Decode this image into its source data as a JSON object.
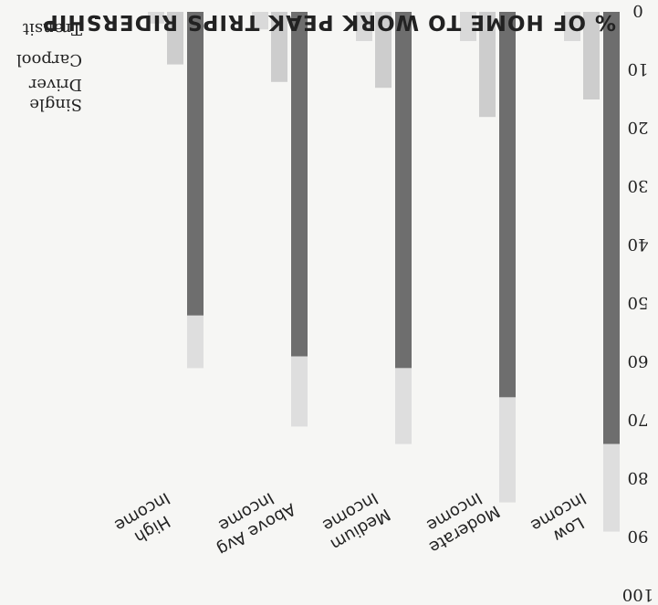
{
  "chart_data": {
    "type": "bar",
    "title": "% OF HOME TO WORK PEAK TRIPS RIDERSHIP",
    "xlabel": "",
    "ylabel": "",
    "ylim": [
      0,
      100
    ],
    "y_ticks": [
      0,
      10,
      20,
      30,
      40,
      50,
      60,
      70,
      80,
      90,
      100
    ],
    "categories": [
      "Low Income",
      "Moderate Income",
      "Medium Income",
      "Above Avg Income",
      "High Income"
    ],
    "series": [
      {
        "name": "Single Driver",
        "values": [
          74,
          66,
          61,
          59,
          52
        ]
      },
      {
        "name": "Carpool",
        "values": [
          15,
          18,
          13,
          12,
          9
        ]
      },
      {
        "name": "Transit",
        "values": [
          5,
          5,
          5,
          3,
          2
        ]
      }
    ],
    "legend_entries": [
      "Transit",
      "Carpool",
      "Single Driver"
    ],
    "colors": {
      "single_driver": "#6e6e6e",
      "carpool": "#cdcdcd",
      "transit": "#d9d9d9",
      "single_driver_overlay": "#dedede",
      "text": "#222222",
      "background": "#f6f6f4"
    },
    "orientation": "rotated 180 degrees",
    "grid": false,
    "legend_placement": "right"
  }
}
